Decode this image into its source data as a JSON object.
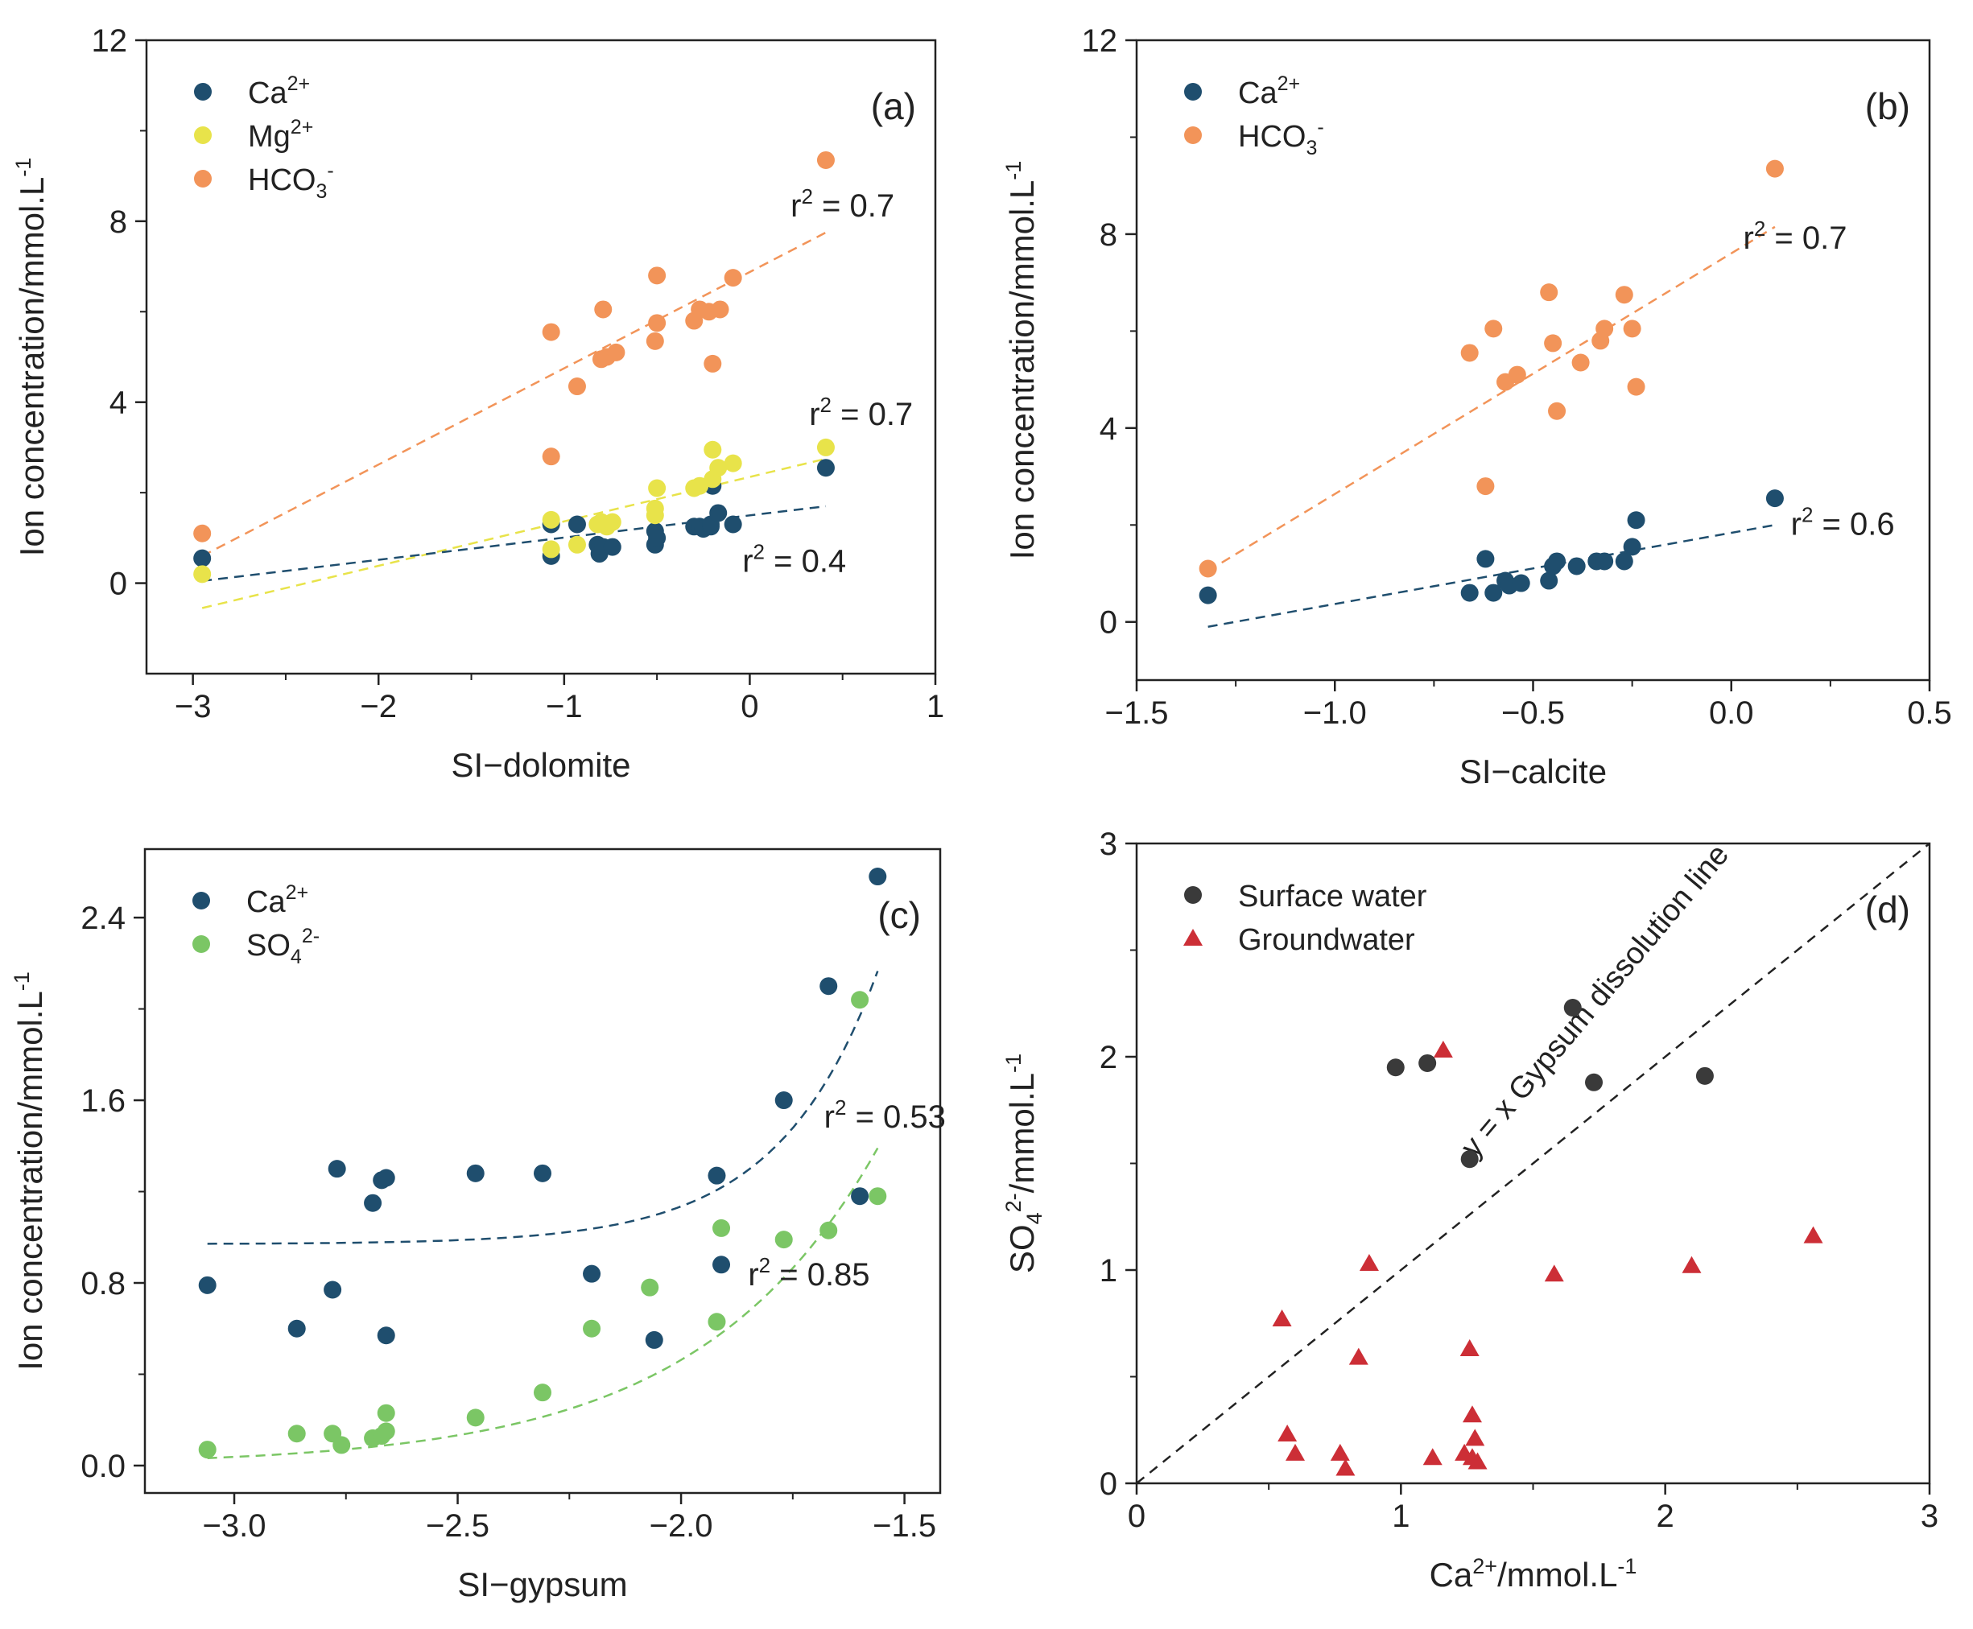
{
  "colors": {
    "ca": "#1f4e6e",
    "mg": "#e8e34a",
    "hco3": "#f29459",
    "so4": "#7bc665",
    "surface": "#3a3a3a",
    "ground": "#cc2e36",
    "axis": "#222222"
  },
  "chart_data": [
    {
      "id": "a",
      "type": "scatter",
      "panel_label": "(a)",
      "xlabel": "SI−dolomite",
      "ylabel": "Ion concentration/mmol.L",
      "ylabel_sup": "-1",
      "xlim": [
        -3.25,
        1
      ],
      "ylim": [
        -2,
        12
      ],
      "xticks": [
        -3,
        -2,
        -1,
        0,
        1
      ],
      "xtick_labels": [
        "−3",
        "−2",
        "−1",
        "0",
        "1"
      ],
      "yticks": [
        0,
        4,
        8,
        12
      ],
      "ytick_labels": [
        "0",
        "4",
        "8",
        "12"
      ],
      "series": [
        {
          "name": "Ca",
          "sup": "2+",
          "sub": "",
          "sup2": "",
          "color_key": "ca",
          "x": [
            -2.95,
            -1.07,
            -1.07,
            -0.93,
            -0.82,
            -0.81,
            -0.79,
            -0.74,
            -0.51,
            -0.51,
            -0.5,
            -0.3,
            -0.27,
            -0.25,
            -0.21,
            -0.21,
            -0.2,
            -0.17,
            -0.09,
            0.41
          ],
          "y": [
            0.55,
            0.6,
            1.3,
            1.3,
            0.85,
            0.65,
            0.8,
            0.8,
            0.85,
            1.15,
            1.0,
            1.25,
            1.25,
            1.2,
            1.25,
            1.3,
            2.15,
            1.55,
            1.3,
            2.55
          ]
        },
        {
          "name": "Mg",
          "sup": "2+",
          "sub": "",
          "sup2": "",
          "color_key": "mg",
          "x": [
            -2.95,
            -1.07,
            -1.07,
            -0.93,
            -0.82,
            -0.8,
            -0.77,
            -0.74,
            -0.51,
            -0.51,
            -0.5,
            -0.3,
            -0.27,
            -0.2,
            -0.2,
            -0.17,
            -0.09,
            0.41
          ],
          "y": [
            0.2,
            0.75,
            1.4,
            0.85,
            1.3,
            1.35,
            1.25,
            1.35,
            1.5,
            1.65,
            2.1,
            2.1,
            2.15,
            2.3,
            2.95,
            2.55,
            2.65,
            3.0
          ]
        },
        {
          "name": "HCO",
          "sup": "",
          "sub": "3",
          "sup2": "-",
          "color_key": "hco3",
          "x": [
            -2.95,
            -1.07,
            -1.07,
            -0.93,
            -0.8,
            -0.79,
            -0.77,
            -0.72,
            -0.51,
            -0.5,
            -0.5,
            -0.3,
            -0.27,
            -0.22,
            -0.2,
            -0.16,
            -0.09,
            0.41
          ],
          "y": [
            1.1,
            2.8,
            5.55,
            4.35,
            4.95,
            6.05,
            5.0,
            5.1,
            5.35,
            5.75,
            6.8,
            5.8,
            6.05,
            6.0,
            4.85,
            6.05,
            6.75,
            9.35
          ]
        }
      ],
      "fits": [
        {
          "color_key": "hco3",
          "kind": "linear",
          "x": [
            -2.95,
            0.41
          ],
          "y": [
            0.6,
            7.75
          ]
        },
        {
          "color_key": "mg",
          "kind": "linear",
          "x": [
            -2.95,
            0.41
          ],
          "y": [
            -0.55,
            2.75
          ]
        },
        {
          "color_key": "ca",
          "kind": "linear",
          "x": [
            -2.95,
            0.41
          ],
          "y": [
            0.05,
            1.7
          ]
        }
      ],
      "annotations": [
        {
          "text": "r",
          "sup": "2",
          "rest": " = 0.7",
          "x": 0.22,
          "y": 8.1
        },
        {
          "text": "r",
          "sup": "2",
          "rest": " = 0.7",
          "x": 0.32,
          "y": 3.5
        },
        {
          "text": "r",
          "sup": "2",
          "rest": " = 0.4",
          "x": -0.04,
          "y": 0.25
        }
      ],
      "legend_position": "top-left"
    },
    {
      "id": "b",
      "type": "scatter",
      "panel_label": "(b)",
      "xlabel": "SI−calcite",
      "ylabel": "Ion concentration/mmol.L",
      "ylabel_sup": "-1",
      "xlim": [
        -1.5,
        0.5
      ],
      "ylim": [
        -1.2,
        12
      ],
      "xticks": [
        -1.5,
        -1.0,
        -0.5,
        0.0,
        0.5
      ],
      "xtick_labels": [
        "−1.5",
        "−1.0",
        "−0.5",
        "0.0",
        "0.5"
      ],
      "yticks": [
        0,
        4,
        8,
        12
      ],
      "ytick_labels": [
        "0",
        "4",
        "8",
        "12"
      ],
      "series": [
        {
          "name": "Ca",
          "sup": "2+",
          "sub": "",
          "sup2": "",
          "color_key": "ca",
          "x": [
            -1.32,
            -0.66,
            -0.62,
            -0.6,
            -0.57,
            -0.56,
            -0.53,
            -0.46,
            -0.45,
            -0.44,
            -0.39,
            -0.34,
            -0.32,
            -0.27,
            -0.25,
            -0.24,
            0.11
          ],
          "y": [
            0.55,
            0.6,
            1.3,
            0.6,
            0.85,
            0.75,
            0.8,
            0.85,
            1.15,
            1.25,
            1.15,
            1.25,
            1.25,
            1.25,
            1.55,
            2.1,
            2.55
          ]
        },
        {
          "name": "HCO",
          "sup": "",
          "sub": "3",
          "sup2": "-",
          "color_key": "hco3",
          "x": [
            -1.32,
            -0.66,
            -0.62,
            -0.6,
            -0.57,
            -0.54,
            -0.46,
            -0.45,
            -0.44,
            -0.38,
            -0.33,
            -0.32,
            -0.27,
            -0.25,
            -0.24,
            0.11
          ],
          "y": [
            1.1,
            5.55,
            2.8,
            6.05,
            4.95,
            5.1,
            6.8,
            5.75,
            4.35,
            5.35,
            5.8,
            6.05,
            6.75,
            6.05,
            4.85,
            9.35
          ]
        }
      ],
      "fits": [
        {
          "color_key": "hco3",
          "kind": "linear",
          "x": [
            -1.32,
            0.11
          ],
          "y": [
            1.05,
            8.15
          ]
        },
        {
          "color_key": "ca",
          "kind": "linear",
          "x": [
            -1.32,
            0.11
          ],
          "y": [
            -0.1,
            2.0
          ]
        }
      ],
      "annotations": [
        {
          "text": "r",
          "sup": "2",
          "rest": " = 0.7",
          "x": 0.03,
          "y": 7.7
        },
        {
          "text": "r",
          "sup": "2",
          "rest": " = 0.6",
          "x": 0.15,
          "y": 1.8
        }
      ],
      "legend_position": "top-left"
    },
    {
      "id": "c",
      "type": "scatter",
      "panel_label": "(c)",
      "xlabel": "SI−gypsum",
      "ylabel": "Ion concentration/mmol.L",
      "ylabel_sup": "-1",
      "xlim": [
        -3.2,
        -1.42
      ],
      "ylim": [
        -0.12,
        2.7
      ],
      "xticks": [
        -3.0,
        -2.5,
        -2.0,
        -1.5
      ],
      "xtick_labels": [
        "−3.0",
        "−2.5",
        "−2.0",
        "−1.5"
      ],
      "yticks": [
        0.0,
        0.8,
        1.6,
        2.4
      ],
      "ytick_labels": [
        "0.0",
        "0.8",
        "1.6",
        "2.4"
      ],
      "series": [
        {
          "name": "Ca",
          "sup": "2+",
          "sub": "",
          "sup2": "",
          "color_key": "ca",
          "x": [
            -3.06,
            -2.86,
            -2.78,
            -2.77,
            -2.69,
            -2.67,
            -2.66,
            -2.66,
            -2.46,
            -2.31,
            -2.2,
            -2.06,
            -1.92,
            -1.91,
            -1.77,
            -1.67,
            -1.6,
            -1.56
          ],
          "y": [
            0.79,
            0.6,
            0.77,
            1.3,
            1.15,
            1.25,
            1.26,
            0.57,
            1.28,
            1.28,
            0.84,
            0.55,
            1.27,
            0.88,
            1.6,
            2.1,
            1.18,
            2.58
          ]
        },
        {
          "name": "SO",
          "sup": "",
          "sub": "4",
          "sup2": "2-",
          "color_key": "so4",
          "x": [
            -3.06,
            -2.86,
            -2.78,
            -2.76,
            -2.69,
            -2.67,
            -2.66,
            -2.66,
            -2.46,
            -2.31,
            -2.2,
            -2.07,
            -1.92,
            -1.91,
            -1.77,
            -1.67,
            -1.6,
            -1.56
          ],
          "y": [
            0.07,
            0.14,
            0.14,
            0.09,
            0.12,
            0.13,
            0.15,
            0.23,
            0.21,
            0.32,
            0.6,
            0.78,
            0.63,
            1.04,
            0.99,
            1.03,
            2.04,
            1.18
          ]
        }
      ],
      "fits": [
        {
          "color_key": "ca",
          "kind": "exp",
          "a": 0.97,
          "b": 0.0014,
          "k": 4.5,
          "x0": -3.06,
          "x1": -1.56
        },
        {
          "color_key": "so4",
          "kind": "exp",
          "a": 0.0,
          "b": 0.0327,
          "k": 2.5,
          "x0": -3.06,
          "x1": -1.56
        }
      ],
      "annotations": [
        {
          "text": "r",
          "sup": "2",
          "rest": " = 0.53",
          "x": -1.68,
          "y": 1.48
        },
        {
          "text": "r",
          "sup": "2",
          "rest": " = 0.85",
          "x": -1.85,
          "y": 0.79
        }
      ],
      "legend_position": "top-left"
    },
    {
      "id": "d",
      "type": "scatter",
      "panel_label": "(d)",
      "xlabel": "Ca",
      "xlabel_sup": "2+",
      "xlabel_rest": "/mmol.L",
      "xlabel_sup2": "-1",
      "ylabel": "SO",
      "ylabel_sub": "4",
      "ylabel_sup2": "2-",
      "ylabel_rest": "/mmol.L",
      "ylabel_sup": "-1",
      "xlim": [
        0,
        3
      ],
      "ylim": [
        0,
        3
      ],
      "xticks": [
        0,
        1,
        2,
        3
      ],
      "xtick_labels": [
        "0",
        "1",
        "2",
        "3"
      ],
      "yticks": [
        0,
        1,
        2,
        3
      ],
      "ytick_labels": [
        "0",
        "1",
        "2",
        "3"
      ],
      "series": [
        {
          "name": "Surface water",
          "color_key": "surface",
          "marker": "circle",
          "x": [
            0.98,
            1.1,
            1.26,
            1.65,
            1.73,
            2.15
          ],
          "y": [
            1.95,
            1.97,
            1.52,
            2.23,
            1.88,
            1.91
          ]
        },
        {
          "name": "Groundwater",
          "color_key": "ground",
          "marker": "triangle",
          "x": [
            0.55,
            0.57,
            0.6,
            0.77,
            0.79,
            0.84,
            0.88,
            1.12,
            1.16,
            1.24,
            1.26,
            1.27,
            1.27,
            1.28,
            1.29,
            1.58,
            2.1,
            2.56
          ],
          "y": [
            0.77,
            0.23,
            0.14,
            0.14,
            0.07,
            0.59,
            1.03,
            0.12,
            2.03,
            0.14,
            0.63,
            0.12,
            0.32,
            0.21,
            0.1,
            0.98,
            1.02,
            1.16
          ]
        }
      ],
      "reference_line": {
        "x": [
          0,
          3
        ],
        "y": [
          0,
          3
        ],
        "label": "y = x  Gypsum dissolution line"
      },
      "legend_position": "top-left"
    }
  ]
}
